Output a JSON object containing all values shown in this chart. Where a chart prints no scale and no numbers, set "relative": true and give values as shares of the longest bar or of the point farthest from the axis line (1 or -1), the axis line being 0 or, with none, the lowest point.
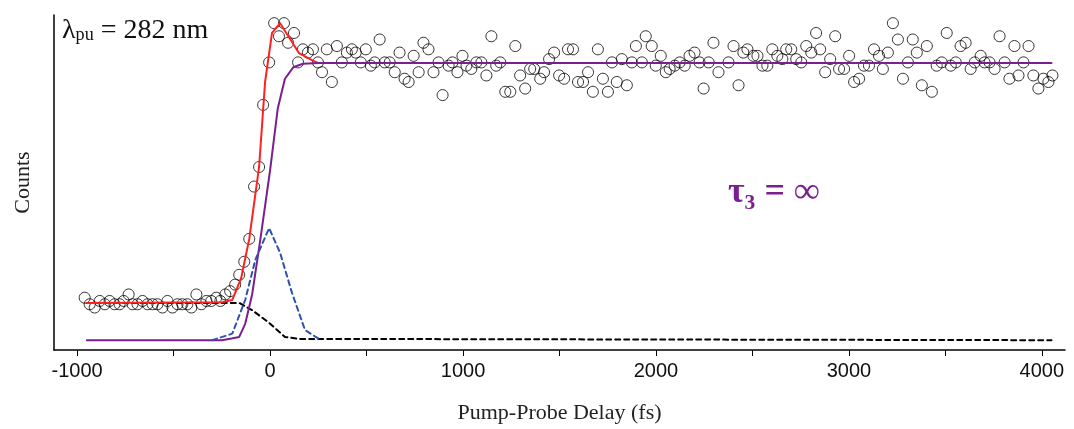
{
  "chart_data": {
    "type": "scatter",
    "relative": true,
    "xlabel": "Pump-Probe Delay (fs)",
    "ylabel": "Counts",
    "annotations": [
      "λ$_{pu}$ = 282 nm",
      "τ₃ = ∞"
    ],
    "xlim": [
      -1120,
      4120
    ],
    "xticks": [
      -1000,
      {
        "value": -500,
        "label": null
      },
      0,
      {
        "value": 500,
        "label": null
      },
      1000,
      {
        "value": 1500,
        "label": null
      },
      2000,
      {
        "value": 2500,
        "label": null
      },
      3000,
      {
        "value": 3500,
        "label": null
      },
      4000
    ],
    "grid": false,
    "marker": "circle",
    "series": [
      {
        "color": "#000000",
        "x": [
          -961,
          -935,
          -909,
          -883,
          -857,
          -832,
          -806,
          -780,
          -759,
          -733,
          -713,
          -687,
          -661,
          -635,
          -609,
          -584,
          -558,
          -532,
          -506,
          -480,
          -455,
          -429,
          -408,
          -382,
          -356,
          -330,
          -305,
          -279,
          -258,
          -232,
          -207,
          -181,
          -160,
          -134,
          -108,
          -83,
          -57,
          -36,
          -5,
          21,
          46,
          72,
          93,
          124,
          145,
          170,
          196,
          222,
          248,
          269,
          294,
          320,
          346,
          372,
          398,
          424,
          444,
          470,
          496,
          522,
          542,
          568,
          594,
          620,
          646,
          671,
          697,
          718,
          744,
          770,
          795,
          821,
          847,
          873,
          894,
          925,
          945,
          971,
          997,
          1018,
          1043,
          1069,
          1095,
          1121,
          1147,
          1172,
          1193,
          1219,
          1245,
          1271,
          1296,
          1322,
          1348,
          1369,
          1400,
          1420,
          1446,
          1472,
          1498,
          1524,
          1544,
          1570,
          1596,
          1622,
          1648,
          1673,
          1699,
          1725,
          1751,
          1772,
          1797,
          1823,
          1849,
          1875,
          1896,
          1927,
          1947,
          1978,
          1999,
          2025,
          2051,
          2071,
          2097,
          2123,
          2149,
          2174,
          2200,
          2226,
          2247,
          2273,
          2298,
          2324,
          2376,
          2402,
          2428,
          2453,
          2474,
          2505,
          2526,
          2552,
          2577,
          2603,
          2629,
          2655,
          2675,
          2701,
          2727,
          2753,
          2779,
          2805,
          2830,
          2851,
          2877,
          2903,
          2929,
          2949,
          2975,
          3001,
          3027,
          3053,
          3078,
          3104,
          3130,
          3156,
          3176,
          3202,
          3228,
          3254,
          3280,
          3306,
          3331,
          3352,
          3378,
          3404,
          3430,
          3455,
          3481,
          3507,
          3528,
          3554,
          3579,
          3605,
          3631,
          3652,
          3683,
          3703,
          3729,
          3755,
          3781,
          3807,
          3832,
          3858,
          3879,
          3905,
          3931,
          3956,
          3982,
          4008,
          4034,
          4055
        ],
        "values": [
          0.16,
          0.14,
          0.13,
          0.15,
          0.14,
          0.15,
          0.14,
          0.14,
          0.15,
          0.17,
          0.14,
          0.14,
          0.15,
          0.14,
          0.14,
          0.14,
          0.13,
          0.15,
          0.13,
          0.14,
          0.14,
          0.14,
          0.13,
          0.17,
          0.14,
          0.15,
          0.15,
          0.16,
          0.15,
          0.17,
          0.18,
          0.2,
          0.23,
          0.27,
          0.34,
          0.5,
          0.56,
          0.75,
          0.88,
          1.0,
          0.96,
          1.0,
          0.94,
          0.97,
          0.88,
          0.92,
          0.91,
          0.92,
          0.88,
          0.85,
          0.92,
          0.82,
          0.93,
          0.88,
          0.91,
          0.92,
          0.91,
          0.88,
          0.92,
          0.87,
          0.88,
          0.95,
          0.88,
          0.88,
          0.85,
          0.91,
          0.83,
          0.82,
          0.9,
          0.85,
          0.94,
          0.92,
          0.85,
          0.88,
          0.78,
          0.87,
          0.88,
          0.85,
          0.9,
          0.87,
          0.86,
          0.88,
          0.88,
          0.84,
          0.96,
          0.87,
          0.88,
          0.79,
          0.79,
          0.93,
          0.84,
          0.8,
          0.86,
          0.86,
          0.83,
          0.85,
          0.89,
          0.91,
          0.84,
          0.83,
          0.92,
          0.92,
          0.82,
          0.82,
          0.85,
          0.79,
          0.92,
          0.83,
          0.79,
          0.88,
          0.82,
          0.89,
          0.81,
          0.88,
          0.93,
          0.88,
          0.96,
          0.93,
          0.87,
          0.9,
          0.85,
          0.86,
          0.87,
          0.88,
          0.87,
          0.9,
          0.91,
          0.88,
          0.8,
          0.88,
          0.94,
          0.85,
          0.88,
          0.93,
          0.81,
          0.91,
          0.92,
          0.9,
          0.9,
          0.87,
          0.87,
          0.92,
          0.9,
          0.89,
          0.92,
          0.92,
          0.89,
          0.88,
          0.93,
          0.91,
          0.97,
          0.92,
          0.85,
          0.89,
          0.96,
          0.86,
          0.86,
          0.9,
          0.82,
          0.83,
          0.87,
          0.87,
          0.92,
          0.9,
          0.86,
          0.91,
          1.0,
          0.95,
          0.83,
          0.88,
          0.95,
          0.91,
          0.81,
          0.93,
          0.79,
          0.87,
          0.88,
          0.97,
          0.87,
          0.88,
          0.93,
          0.94,
          0.86,
          0.88,
          0.9,
          0.88,
          0.88,
          0.86,
          0.96,
          0.88,
          0.83,
          0.93,
          0.84,
          0.88,
          0.93,
          0.84,
          0.8,
          0.83,
          0.82,
          0.84
        ]
      },
      {
        "type": "line",
        "color": "#000000",
        "line_style": "dashed",
        "marker": "none",
        "x": [
          -950,
          -200,
          -160,
          -93,
          -5,
          77,
          150,
          4050
        ],
        "values": [
          0.144,
          0.144,
          0.144,
          0.122,
          0.083,
          0.04,
          0.034,
          0.03
        ]
      },
      {
        "type": "line",
        "color": "#ff2020",
        "line_style": "solid",
        "marker": "none",
        "x": [
          -950,
          -250,
          -196,
          -150,
          -108,
          -57,
          -26,
          10,
          52,
          98,
          150,
          217,
          250
        ],
        "values": [
          0.144,
          0.146,
          0.153,
          0.22,
          0.34,
          0.56,
          0.82,
          0.97,
          1.0,
          0.957,
          0.908,
          0.887,
          0.878
        ]
      },
      {
        "type": "line",
        "color": "#7a1f8f",
        "line_style": "solid",
        "marker": "none",
        "x": [
          -950,
          -250,
          -200,
          -160,
          -129,
          -93,
          -50,
          0,
          40,
          77,
          120,
          170,
          250,
          4050
        ],
        "values": [
          0.03,
          0.03,
          0.035,
          0.04,
          0.08,
          0.17,
          0.34,
          0.55,
          0.74,
          0.83,
          0.865,
          0.876,
          0.878,
          0.878
        ]
      },
      {
        "type": "line",
        "color": "#3050b0",
        "line_style": "dashed",
        "marker": "none",
        "x": [
          -300,
          -196,
          -129,
          -77,
          -5,
          52,
          114,
          181,
          253
        ],
        "values": [
          0.03,
          0.05,
          0.153,
          0.275,
          0.373,
          0.297,
          0.174,
          0.061,
          0.034
        ]
      }
    ]
  }
}
